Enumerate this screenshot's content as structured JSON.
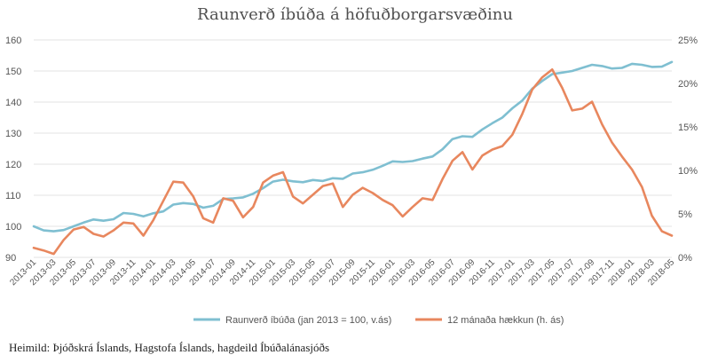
{
  "source_text": "Heimild: Þjóðskrá Íslands, Hagstofa Íslands, hagdeild Íbúðalánasjóðs",
  "chart_data": {
    "type": "line",
    "title": "Raunverð íbúða á höfuðborgarsvæðinu",
    "xlabel": "",
    "ylabel": "",
    "x": [
      "2013-01",
      "2013-02",
      "2013-03",
      "2013-04",
      "2013-05",
      "2013-06",
      "2013-07",
      "2013-08",
      "2013-09",
      "2013-10",
      "2013-11",
      "2013-12",
      "2014-01",
      "2014-02",
      "2014-03",
      "2014-04",
      "2014-05",
      "2014-06",
      "2014-07",
      "2014-08",
      "2014-09",
      "2014-10",
      "2014-11",
      "2014-12",
      "2015-01",
      "2015-02",
      "2015-03",
      "2015-04",
      "2015-05",
      "2015-06",
      "2015-07",
      "2015-08",
      "2015-09",
      "2015-10",
      "2015-11",
      "2015-12",
      "2016-01",
      "2016-02",
      "2016-03",
      "2016-04",
      "2016-05",
      "2016-06",
      "2016-07",
      "2016-08",
      "2016-09",
      "2016-10",
      "2016-11",
      "2016-12",
      "2017-01",
      "2017-02",
      "2017-03",
      "2017-04",
      "2017-05",
      "2017-06",
      "2017-07",
      "2017-08",
      "2017-09",
      "2017-10",
      "2017-11",
      "2017-12",
      "2018-01",
      "2018-02",
      "2018-03",
      "2018-04",
      "2018-05"
    ],
    "x_tick_labels": [
      "2013-01",
      "2013-03",
      "2013-05",
      "2013-07",
      "2013-09",
      "2013-11",
      "2014-01",
      "2014-03",
      "2014-05",
      "2014-07",
      "2014-09",
      "2014-11",
      "2015-01",
      "2015-03",
      "2015-05",
      "2015-07",
      "2015-09",
      "2015-11",
      "2016-01",
      "2016-03",
      "2016-05",
      "2016-07",
      "2016-09",
      "2016-11",
      "2017-01",
      "2017-03",
      "2017-05",
      "2017-07",
      "2017-09",
      "2017-11",
      "2018-01",
      "2018-03",
      "2018-05"
    ],
    "y_left": {
      "range": [
        90,
        160
      ],
      "ticks": [
        90,
        100,
        110,
        120,
        130,
        140,
        150,
        160
      ]
    },
    "y_right": {
      "range": [
        0,
        25
      ],
      "ticks": [
        "0%",
        "5%",
        "10%",
        "15%",
        "20%",
        "25%"
      ]
    },
    "grid": true,
    "legend_position": "bottom",
    "series": [
      {
        "name": "Raunverð íbúða (jan 2013 = 100, v.ás)",
        "axis": "left",
        "color": "#7fbfd1",
        "values": [
          100.0,
          98.7,
          98.4,
          98.8,
          100.0,
          101.2,
          102.2,
          101.8,
          102.3,
          104.3,
          104.0,
          103.2,
          104.2,
          104.8,
          107.0,
          107.5,
          107.2,
          106.0,
          106.6,
          108.8,
          109.0,
          109.3,
          110.5,
          112.3,
          114.4,
          115.0,
          114.5,
          114.2,
          114.9,
          114.6,
          115.5,
          115.3,
          117.0,
          117.4,
          118.2,
          119.5,
          120.9,
          120.7,
          121.0,
          121.8,
          122.5,
          124.8,
          128.1,
          129.0,
          128.8,
          131.2,
          133.2,
          135.0,
          138.0,
          140.5,
          144.3,
          146.8,
          149.0,
          149.5,
          150.0,
          151.0,
          152.0,
          151.6,
          150.8,
          151.0,
          152.3,
          152.0,
          151.3,
          151.4,
          152.9
        ]
      },
      {
        "name": "12 mánaða hækkun (h. ás)",
        "axis": "right",
        "color": "#e8875e",
        "values": [
          1.1,
          0.8,
          0.4,
          2.0,
          3.2,
          3.5,
          2.7,
          2.4,
          3.1,
          4.0,
          3.9,
          2.5,
          4.3,
          6.5,
          8.7,
          8.6,
          7.0,
          4.5,
          4.0,
          6.8,
          6.5,
          4.6,
          5.8,
          8.6,
          9.4,
          9.8,
          7.0,
          6.2,
          7.2,
          8.2,
          8.5,
          5.8,
          7.2,
          8.0,
          7.4,
          6.6,
          6.0,
          4.7,
          5.8,
          6.8,
          6.6,
          9.0,
          11.1,
          12.1,
          10.1,
          11.7,
          12.4,
          12.8,
          14.1,
          16.5,
          19.3,
          20.7,
          21.6,
          19.5,
          16.9,
          17.1,
          17.9,
          15.3,
          13.2,
          11.6,
          10.1,
          8.1,
          4.8,
          3.0,
          2.5
        ]
      }
    ]
  }
}
